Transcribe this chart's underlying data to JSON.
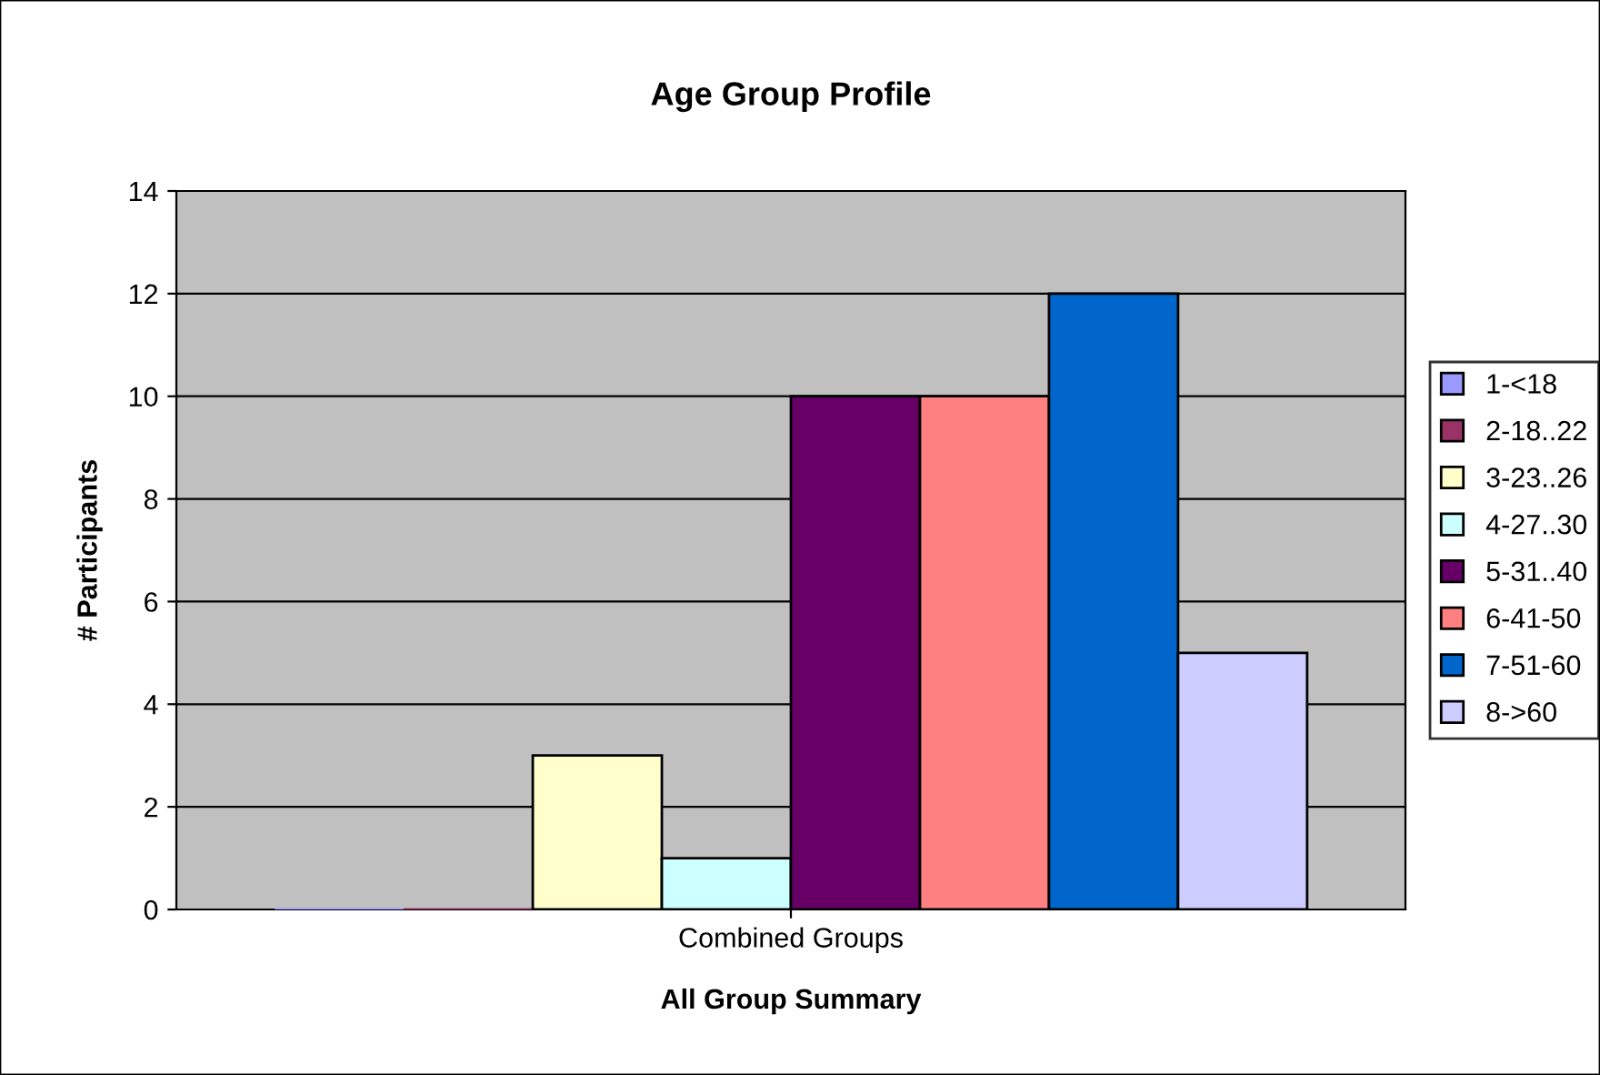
{
  "chart_data": {
    "type": "bar",
    "title": "Age Group Profile",
    "xlabel": "All Group Summary",
    "ylabel": "# Participants",
    "categories": [
      "Combined Groups"
    ],
    "series": [
      {
        "name": "1-<18",
        "color": "#9999ff",
        "values": [
          0
        ]
      },
      {
        "name": "2-18..22",
        "color": "#993366",
        "values": [
          0
        ]
      },
      {
        "name": "3-23..26",
        "color": "#ffffcc",
        "values": [
          3
        ]
      },
      {
        "name": "4-27..30",
        "color": "#ccffff",
        "values": [
          1
        ]
      },
      {
        "name": "5-31..40",
        "color": "#660066",
        "values": [
          10
        ]
      },
      {
        "name": "6-41-50",
        "color": "#ff8080",
        "values": [
          10
        ]
      },
      {
        "name": "7-51-60",
        "color": "#0066cc",
        "values": [
          12
        ]
      },
      {
        "name": "8->60",
        "color": "#ccccff",
        "values": [
          5
        ]
      }
    ],
    "ylim": [
      0,
      14
    ],
    "yticks": [
      0,
      2,
      4,
      6,
      8,
      10,
      12,
      14
    ],
    "grid": "y",
    "legend": "right"
  }
}
